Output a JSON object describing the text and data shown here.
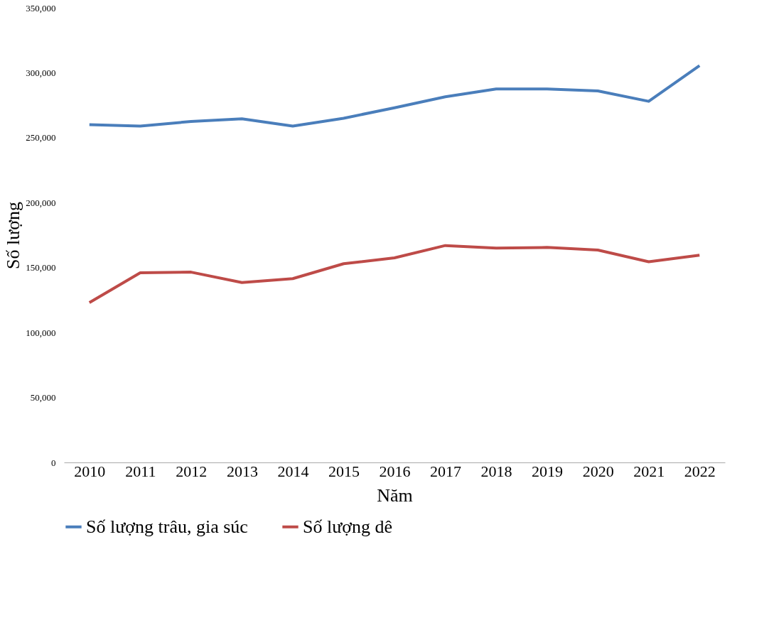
{
  "chart_data": {
    "type": "line",
    "xlabel": "Năm",
    "ylabel": "Số lượng",
    "categories": [
      "2010",
      "2011",
      "2012",
      "2013",
      "2014",
      "2015",
      "2016",
      "2017",
      "2018",
      "2019",
      "2020",
      "2021",
      "2022"
    ],
    "series": [
      {
        "name": "Số lượng trâu, gia súc",
        "color": "#4a7ebb",
        "values": [
          260000,
          259000,
          262500,
          264500,
          259000,
          265000,
          273000,
          281500,
          287500,
          287500,
          286000,
          278000,
          305500
        ]
      },
      {
        "name": "Số lượng dê",
        "color": "#be4b48",
        "values": [
          123000,
          146000,
          146500,
          138500,
          141500,
          153000,
          157500,
          167000,
          165000,
          165500,
          163500,
          154500,
          159500
        ]
      }
    ],
    "ylim": [
      0,
      350000
    ],
    "yticks": [
      0,
      {
        "value": 50000,
        "label": "50,000"
      },
      {
        "value": 100000,
        "label": "100,000"
      },
      {
        "value": 150000,
        "label": "150,000"
      },
      {
        "value": 200000,
        "label": "200,000"
      },
      {
        "value": 250000,
        "label": "250,000"
      },
      {
        "value": 300000,
        "label": "300,000"
      },
      {
        "value": 350000,
        "label": "350,000"
      }
    ],
    "grid": false,
    "legend": "bottom",
    "marker": "none",
    "line_style": "solid"
  }
}
